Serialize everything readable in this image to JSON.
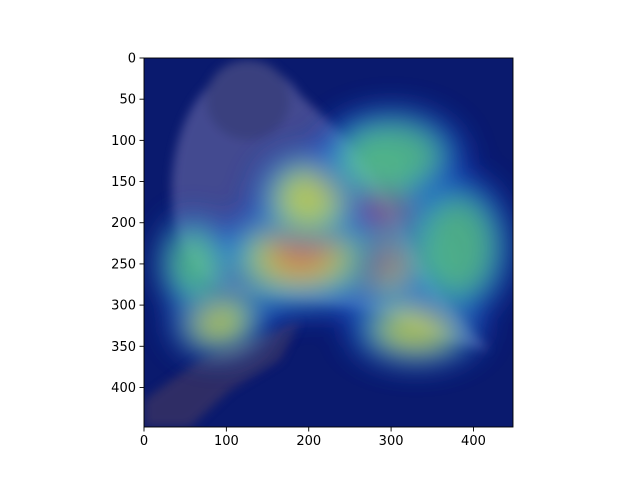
{
  "chart_data": {
    "type": "heatmap",
    "subtype": "image-with-saliency-overlay",
    "title": "",
    "xlabel": "",
    "ylabel": "",
    "image_size": [
      448,
      448
    ],
    "xlim": [
      0,
      448
    ],
    "ylim": [
      448,
      0
    ],
    "y_axis_inverted": true,
    "grid": false,
    "xticks": [
      0,
      100,
      200,
      300,
      400
    ],
    "yticks": [
      0,
      50,
      100,
      150,
      200,
      250,
      300,
      350,
      400
    ],
    "xtick_labels": [
      "0",
      "100",
      "200",
      "300",
      "400"
    ],
    "ytick_labels": [
      "0",
      "50",
      "100",
      "150",
      "200",
      "250",
      "300",
      "350",
      "400"
    ],
    "colormap": "jet",
    "colors": {
      "background_low": "#0a1a6e",
      "low": "#1f3fd8",
      "mid_low": "#19c6e0",
      "mid": "#7be36a",
      "mid_high": "#f2e23a",
      "high": "#f47a2a",
      "peak": "#d8241e"
    },
    "hotspots": [
      {
        "x": 280,
        "y": 190,
        "intensity": 1.0,
        "rx": 55,
        "ry": 75
      },
      {
        "x": 260,
        "y": 250,
        "intensity": 0.95,
        "rx": 90,
        "ry": 40
      },
      {
        "x": 120,
        "y": 270,
        "intensity": 0.9,
        "rx": 60,
        "ry": 35
      },
      {
        "x": 190,
        "y": 240,
        "intensity": 0.85,
        "rx": 70,
        "ry": 45
      },
      {
        "x": 200,
        "y": 170,
        "intensity": 0.7,
        "rx": 45,
        "ry": 40
      },
      {
        "x": 330,
        "y": 330,
        "intensity": 0.65,
        "rx": 55,
        "ry": 30
      },
      {
        "x": 90,
        "y": 320,
        "intensity": 0.6,
        "rx": 40,
        "ry": 30
      },
      {
        "x": 300,
        "y": 120,
        "intensity": 0.5,
        "rx": 60,
        "ry": 40
      },
      {
        "x": 380,
        "y": 230,
        "intensity": 0.45,
        "rx": 45,
        "ry": 60
      },
      {
        "x": 60,
        "y": 250,
        "intensity": 0.45,
        "rx": 30,
        "ry": 40
      }
    ]
  }
}
